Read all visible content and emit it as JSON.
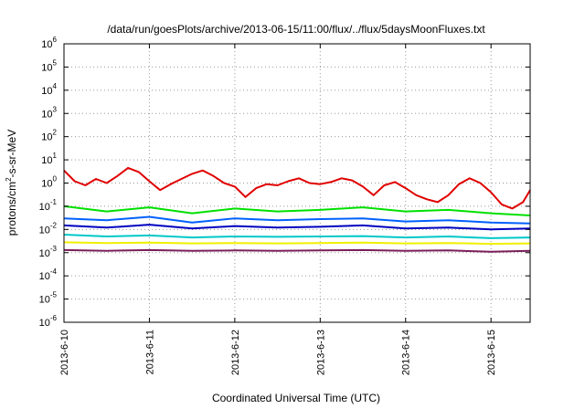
{
  "chart_data": {
    "type": "line",
    "title": "/data/run/goesPlots/archive/2013-06-15/11:00/flux/../flux/5daysMoonFluxes.txt",
    "xlabel": "Coordinated Universal Time (UTC)",
    "ylabel": "protons/cm2-s-sr-MeV",
    "ylabel_parts": {
      "pre": "protons/cm",
      "sup": "2",
      "post": "-s-sr-MeV"
    },
    "y_scale": "log",
    "ylim": [
      1e-06,
      1000000.0
    ],
    "y_ticks": [
      {
        "base": "10",
        "exp": "-6",
        "value": 1e-06
      },
      {
        "base": "10",
        "exp": "-5",
        "value": 1e-05
      },
      {
        "base": "10",
        "exp": "-4",
        "value": 0.0001
      },
      {
        "base": "10",
        "exp": "-3",
        "value": 0.001
      },
      {
        "base": "10",
        "exp": "-2",
        "value": 0.01
      },
      {
        "base": "10",
        "exp": "-1",
        "value": 0.1
      },
      {
        "base": "10",
        "exp": "0",
        "value": 1
      },
      {
        "base": "10",
        "exp": "1",
        "value": 10
      },
      {
        "base": "10",
        "exp": "2",
        "value": 100
      },
      {
        "base": "10",
        "exp": "3",
        "value": 1000
      },
      {
        "base": "10",
        "exp": "4",
        "value": 10000
      },
      {
        "base": "10",
        "exp": "5",
        "value": 100000
      },
      {
        "base": "10",
        "exp": "6",
        "value": 1000000
      }
    ],
    "x_axis_type": "date",
    "xlim": [
      "2013-06-10T00:00",
      "2013-06-15T11:00"
    ],
    "x_ticks": [
      "2013-6-10",
      "2013-6-11",
      "2013-6-12",
      "2013-6-13",
      "2013-6-14",
      "2013-6-15"
    ],
    "grid": true,
    "legend": "none",
    "series": [
      {
        "color": "#e00000",
        "x": [
          "2013-06-10T00:00",
          "2013-06-10T03:00",
          "2013-06-10T06:00",
          "2013-06-10T09:00",
          "2013-06-10T12:00",
          "2013-06-10T15:00",
          "2013-06-10T18:00",
          "2013-06-10T21:00",
          "2013-06-11T00:00",
          "2013-06-11T03:00",
          "2013-06-11T06:00",
          "2013-06-11T09:00",
          "2013-06-11T12:00",
          "2013-06-11T15:00",
          "2013-06-11T18:00",
          "2013-06-11T21:00",
          "2013-06-12T00:00",
          "2013-06-12T03:00",
          "2013-06-12T06:00",
          "2013-06-12T09:00",
          "2013-06-12T12:00",
          "2013-06-12T15:00",
          "2013-06-12T18:00",
          "2013-06-12T21:00",
          "2013-06-13T00:00",
          "2013-06-13T03:00",
          "2013-06-13T06:00",
          "2013-06-13T09:00",
          "2013-06-13T12:00",
          "2013-06-13T15:00",
          "2013-06-13T18:00",
          "2013-06-13T21:00",
          "2013-06-14T00:00",
          "2013-06-14T03:00",
          "2013-06-14T06:00",
          "2013-06-14T09:00",
          "2013-06-14T12:00",
          "2013-06-14T15:00",
          "2013-06-14T18:00",
          "2013-06-14T21:00",
          "2013-06-15T00:00",
          "2013-06-15T03:00",
          "2013-06-15T06:00",
          "2013-06-15T09:00",
          "2013-06-15T11:00"
        ],
        "values": [
          3.5,
          1.2,
          0.8,
          1.5,
          1.0,
          2.0,
          4.5,
          3.0,
          1.2,
          0.5,
          0.9,
          1.5,
          2.5,
          3.5,
          2.0,
          1.0,
          0.7,
          0.25,
          0.6,
          0.9,
          0.8,
          1.2,
          1.6,
          1.0,
          0.9,
          1.1,
          1.6,
          1.3,
          0.7,
          0.3,
          0.8,
          1.1,
          0.6,
          0.3,
          0.2,
          0.15,
          0.3,
          0.9,
          1.6,
          1.0,
          0.4,
          0.12,
          0.08,
          0.15,
          0.5
        ]
      },
      {
        "color": "#00e000",
        "x": [
          "2013-06-10T00:00",
          "2013-06-10T12:00",
          "2013-06-11T00:00",
          "2013-06-11T12:00",
          "2013-06-12T00:00",
          "2013-06-12T12:00",
          "2013-06-13T00:00",
          "2013-06-13T12:00",
          "2013-06-14T00:00",
          "2013-06-14T12:00",
          "2013-06-15T00:00",
          "2013-06-15T11:00"
        ],
        "values": [
          0.1,
          0.06,
          0.09,
          0.05,
          0.08,
          0.06,
          0.07,
          0.09,
          0.06,
          0.07,
          0.05,
          0.04
        ]
      },
      {
        "color": "#0060ff",
        "x": [
          "2013-06-10T00:00",
          "2013-06-10T12:00",
          "2013-06-11T00:00",
          "2013-06-11T12:00",
          "2013-06-12T00:00",
          "2013-06-12T12:00",
          "2013-06-13T00:00",
          "2013-06-13T12:00",
          "2013-06-14T00:00",
          "2013-06-14T12:00",
          "2013-06-15T00:00",
          "2013-06-15T11:00"
        ],
        "values": [
          0.03,
          0.025,
          0.035,
          0.02,
          0.03,
          0.025,
          0.028,
          0.03,
          0.022,
          0.025,
          0.02,
          0.018
        ]
      },
      {
        "color": "#0000c0",
        "x": [
          "2013-06-10T00:00",
          "2013-06-10T12:00",
          "2013-06-11T00:00",
          "2013-06-11T12:00",
          "2013-06-12T00:00",
          "2013-06-12T12:00",
          "2013-06-13T00:00",
          "2013-06-13T12:00",
          "2013-06-14T00:00",
          "2013-06-14T12:00",
          "2013-06-15T00:00",
          "2013-06-15T11:00"
        ],
        "values": [
          0.015,
          0.012,
          0.016,
          0.011,
          0.014,
          0.012,
          0.013,
          0.015,
          0.011,
          0.012,
          0.01,
          0.011
        ]
      },
      {
        "color": "#00c8c8",
        "x": [
          "2013-06-10T00:00",
          "2013-06-10T12:00",
          "2013-06-11T00:00",
          "2013-06-11T12:00",
          "2013-06-12T00:00",
          "2013-06-12T12:00",
          "2013-06-13T00:00",
          "2013-06-13T12:00",
          "2013-06-14T00:00",
          "2013-06-14T12:00",
          "2013-06-15T00:00",
          "2013-06-15T11:00"
        ],
        "values": [
          0.006,
          0.005,
          0.0055,
          0.0045,
          0.005,
          0.0048,
          0.005,
          0.0052,
          0.0045,
          0.005,
          0.0042,
          0.0045
        ]
      },
      {
        "color": "#f0f000",
        "x": [
          "2013-06-10T00:00",
          "2013-06-10T12:00",
          "2013-06-11T00:00",
          "2013-06-11T12:00",
          "2013-06-12T00:00",
          "2013-06-12T12:00",
          "2013-06-13T00:00",
          "2013-06-13T12:00",
          "2013-06-14T00:00",
          "2013-06-14T12:00",
          "2013-06-15T00:00",
          "2013-06-15T11:00"
        ],
        "values": [
          0.0028,
          0.0026,
          0.0027,
          0.0025,
          0.0026,
          0.0025,
          0.0026,
          0.0027,
          0.0025,
          0.0026,
          0.0024,
          0.0025
        ]
      },
      {
        "color": "#7a1f5a",
        "x": [
          "2013-06-10T00:00",
          "2013-06-10T12:00",
          "2013-06-11T00:00",
          "2013-06-11T12:00",
          "2013-06-12T00:00",
          "2013-06-12T12:00",
          "2013-06-13T00:00",
          "2013-06-13T12:00",
          "2013-06-14T00:00",
          "2013-06-14T12:00",
          "2013-06-15T00:00",
          "2013-06-15T11:00"
        ],
        "values": [
          0.0013,
          0.0012,
          0.0013,
          0.0012,
          0.00125,
          0.0012,
          0.00125,
          0.0013,
          0.0012,
          0.00125,
          0.0011,
          0.0012
        ]
      }
    ]
  }
}
